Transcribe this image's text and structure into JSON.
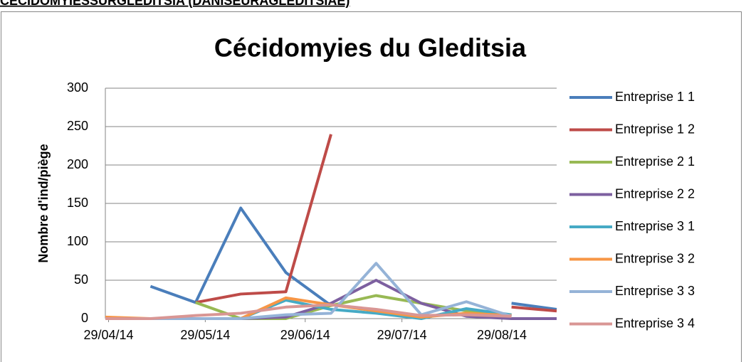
{
  "heading": "CÉCIDOMYIESSURGLEDITSIA (DANISEURAGLEDITSIAE)",
  "chart_data": {
    "type": "line",
    "title": "Cécidomyies du Gleditsia",
    "y_label": "Nombre d'ind/piège",
    "x": [
      "2014-04-28",
      "2014-05-12",
      "2014-05-26",
      "2014-06-09",
      "2014-06-23",
      "2014-07-07",
      "2014-07-21",
      "2014-08-04",
      "2014-08-18",
      "2014-09-01",
      "2014-09-15"
    ],
    "xlim": [
      "2014-04-28",
      "2014-09-15"
    ],
    "xticks": [
      {
        "value": "2014-04-29",
        "label": "29/04/14"
      },
      {
        "value": "2014-05-29",
        "label": "29/05/14"
      },
      {
        "value": "2014-06-29",
        "label": "29/06/14"
      },
      {
        "value": "2014-07-29",
        "label": "29/07/14"
      },
      {
        "value": "2014-08-29",
        "label": "29/08/14"
      }
    ],
    "ylim": [
      0,
      300
    ],
    "yticks": [
      0,
      50,
      100,
      150,
      200,
      250,
      300
    ],
    "grid": true,
    "legend": "right",
    "series": [
      {
        "name": "Entreprise 1 1",
        "color": "#4a7ebb",
        "values": [
          null,
          42,
          21,
          144,
          60,
          17,
          null,
          null,
          null,
          20,
          12
        ]
      },
      {
        "name": "Entreprise 1 2",
        "color": "#be4b48",
        "values": [
          null,
          null,
          21,
          32,
          35,
          240,
          null,
          null,
          null,
          15,
          10
        ]
      },
      {
        "name": "Entreprise 2 1",
        "color": "#98b954",
        "values": [
          null,
          null,
          21,
          0,
          0,
          17,
          30,
          20,
          10,
          3,
          null
        ]
      },
      {
        "name": "Entreprise 2 2",
        "color": "#7d60a0",
        "values": [
          0,
          0,
          0,
          0,
          2,
          20,
          50,
          20,
          3,
          0,
          0
        ]
      },
      {
        "name": "Entreprise 3 1",
        "color": "#46aac5",
        "values": [
          null,
          null,
          null,
          0,
          24,
          12,
          7,
          0,
          13,
          5,
          null
        ]
      },
      {
        "name": "Entreprise 3 2",
        "color": "#f79646",
        "values": [
          2,
          0,
          0,
          0,
          27,
          18,
          10,
          2,
          7,
          4,
          null
        ]
      },
      {
        "name": "Entreprise 3 3",
        "color": "#95b3d7",
        "values": [
          0,
          0,
          0,
          0,
          5,
          7,
          72,
          5,
          22,
          3,
          null
        ]
      },
      {
        "name": "Entreprise 3 4",
        "color": "#d99694",
        "values": [
          0,
          0,
          4,
          7,
          15,
          18,
          12,
          4,
          5,
          3,
          null
        ]
      }
    ]
  }
}
